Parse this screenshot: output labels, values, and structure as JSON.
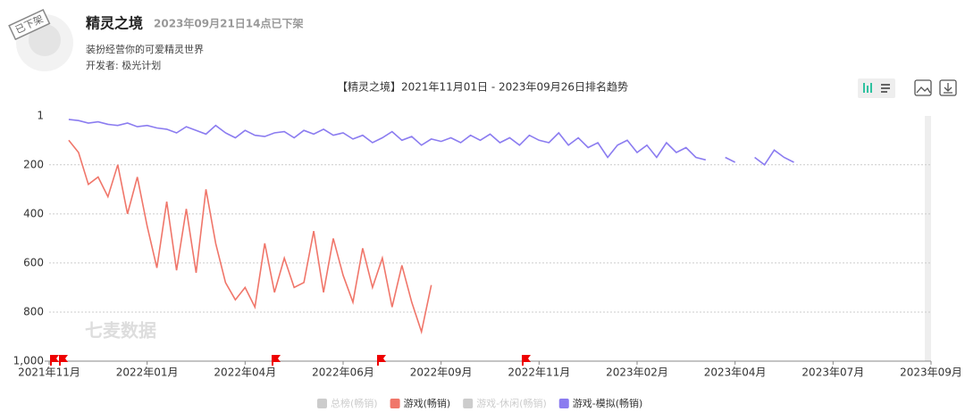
{
  "header": {
    "stamp": "已下架",
    "title": "精灵之境",
    "status": "2023年09月21日14点已下架",
    "description": "装扮经营你的可爱精灵世界",
    "developer": "开发者: 极光计划"
  },
  "chart_data": {
    "type": "line",
    "title": "【精灵之境】2021年11月01日 - 2023年09月26日排名趋势",
    "watermark": "七麦数据",
    "categories": [
      "2021年11月",
      null,
      null,
      null,
      null,
      null,
      null,
      null,
      null,
      null,
      "2022年01月",
      null,
      null,
      null,
      null,
      null,
      null,
      null,
      null,
      null,
      "2022年04月",
      null,
      null,
      null,
      null,
      null,
      null,
      null,
      null,
      null,
      "2022年06月",
      null,
      null,
      null,
      null,
      null,
      null,
      null,
      null,
      null,
      "2022年09月",
      null,
      null,
      null,
      null,
      null,
      null,
      null,
      null,
      null,
      "2022年11月",
      null,
      null,
      null,
      null,
      null,
      null,
      null,
      null,
      null,
      "2023年02月",
      null,
      null,
      null,
      null,
      null,
      null,
      null,
      null,
      null,
      "2023年04月",
      null,
      null,
      null,
      null,
      null,
      null,
      null,
      null,
      null,
      "2023年07月",
      null,
      null,
      null,
      null,
      null,
      null,
      null,
      null,
      null,
      "2023年09月"
    ],
    "ylim": [
      1,
      1000
    ],
    "y_inverted": true,
    "yticks": [
      1,
      200,
      400,
      600,
      800,
      {
        "value": 1000,
        "label": "1,000"
      }
    ],
    "grid": true,
    "series": [
      {
        "name": "总榜(畅销)",
        "color": "#cccccc",
        "hidden": true,
        "values": [
          null,
          null,
          null,
          null,
          null,
          null,
          null,
          null,
          null,
          null,
          null,
          null,
          null,
          null,
          null,
          null,
          null,
          null,
          null,
          null,
          null,
          null,
          null,
          null,
          null,
          null,
          null,
          null,
          null,
          null,
          null,
          null,
          null,
          null,
          null,
          null,
          null,
          null,
          null,
          null,
          null,
          null,
          null,
          null,
          null,
          null,
          null,
          null,
          null,
          null,
          null,
          null,
          null,
          null,
          null,
          null,
          null,
          null,
          null,
          null,
          null,
          null,
          null,
          null,
          null,
          null,
          null,
          null,
          null,
          null,
          null,
          null,
          null,
          null,
          null,
          null,
          null,
          null,
          null,
          null,
          null,
          null,
          null,
          null,
          null,
          null,
          null,
          null,
          null,
          null,
          null
        ]
      },
      {
        "name": "游戏(畅销)",
        "color": "#f0766a",
        "hidden": false,
        "values": [
          null,
          null,
          100,
          150,
          280,
          250,
          330,
          200,
          400,
          250,
          450,
          620,
          350,
          630,
          380,
          640,
          300,
          520,
          680,
          750,
          700,
          780,
          520,
          720,
          580,
          700,
          680,
          470,
          720,
          500,
          650,
          760,
          540,
          700,
          580,
          780,
          610,
          760,
          880,
          690,
          null,
          null,
          null,
          null,
          null,
          null,
          null,
          null,
          null,
          null,
          null,
          null,
          null,
          null,
          null,
          null,
          null,
          null,
          null,
          null,
          null,
          null,
          null,
          null,
          null,
          null,
          null,
          null,
          null,
          null,
          null,
          null,
          null,
          null,
          null,
          null,
          null,
          null,
          null,
          null,
          null,
          null,
          null,
          null,
          null,
          null,
          null,
          null,
          null,
          null,
          null
        ]
      },
      {
        "name": "游戏-休闲(畅销)",
        "color": "#cccccc",
        "hidden": true,
        "values": [
          null,
          null,
          null,
          null,
          null,
          null,
          null,
          null,
          null,
          null,
          null,
          null,
          null,
          null,
          null,
          null,
          null,
          null,
          null,
          null,
          null,
          null,
          null,
          null,
          null,
          null,
          null,
          null,
          null,
          null,
          null,
          null,
          null,
          null,
          null,
          null,
          null,
          null,
          null,
          null,
          null,
          null,
          null,
          null,
          null,
          null,
          null,
          null,
          null,
          null,
          null,
          null,
          null,
          null,
          null,
          null,
          null,
          null,
          null,
          null,
          null,
          null,
          null,
          null,
          null,
          null,
          null,
          null,
          null,
          null,
          null,
          null,
          null,
          null,
          null,
          null,
          null,
          null,
          null,
          null,
          null,
          null,
          null,
          null,
          null,
          null,
          null,
          null,
          null,
          null,
          null
        ]
      },
      {
        "name": "游戏-模拟(畅销)",
        "color": "#8b7cf0",
        "hidden": false,
        "values": [
          null,
          null,
          15,
          20,
          30,
          25,
          35,
          40,
          30,
          45,
          40,
          50,
          55,
          70,
          45,
          60,
          75,
          40,
          70,
          90,
          60,
          80,
          85,
          70,
          65,
          90,
          60,
          75,
          55,
          80,
          70,
          95,
          80,
          110,
          90,
          65,
          100,
          85,
          120,
          95,
          105,
          90,
          110,
          80,
          100,
          75,
          110,
          90,
          120,
          80,
          100,
          110,
          70,
          120,
          90,
          130,
          110,
          170,
          120,
          100,
          150,
          120,
          170,
          110,
          150,
          130,
          170,
          180,
          null,
          170,
          190,
          null,
          170,
          200,
          140,
          170,
          190,
          null,
          null,
          null,
          null,
          null,
          null,
          null,
          null,
          null,
          null,
          null,
          null,
          null,
          null
        ]
      }
    ]
  }
}
